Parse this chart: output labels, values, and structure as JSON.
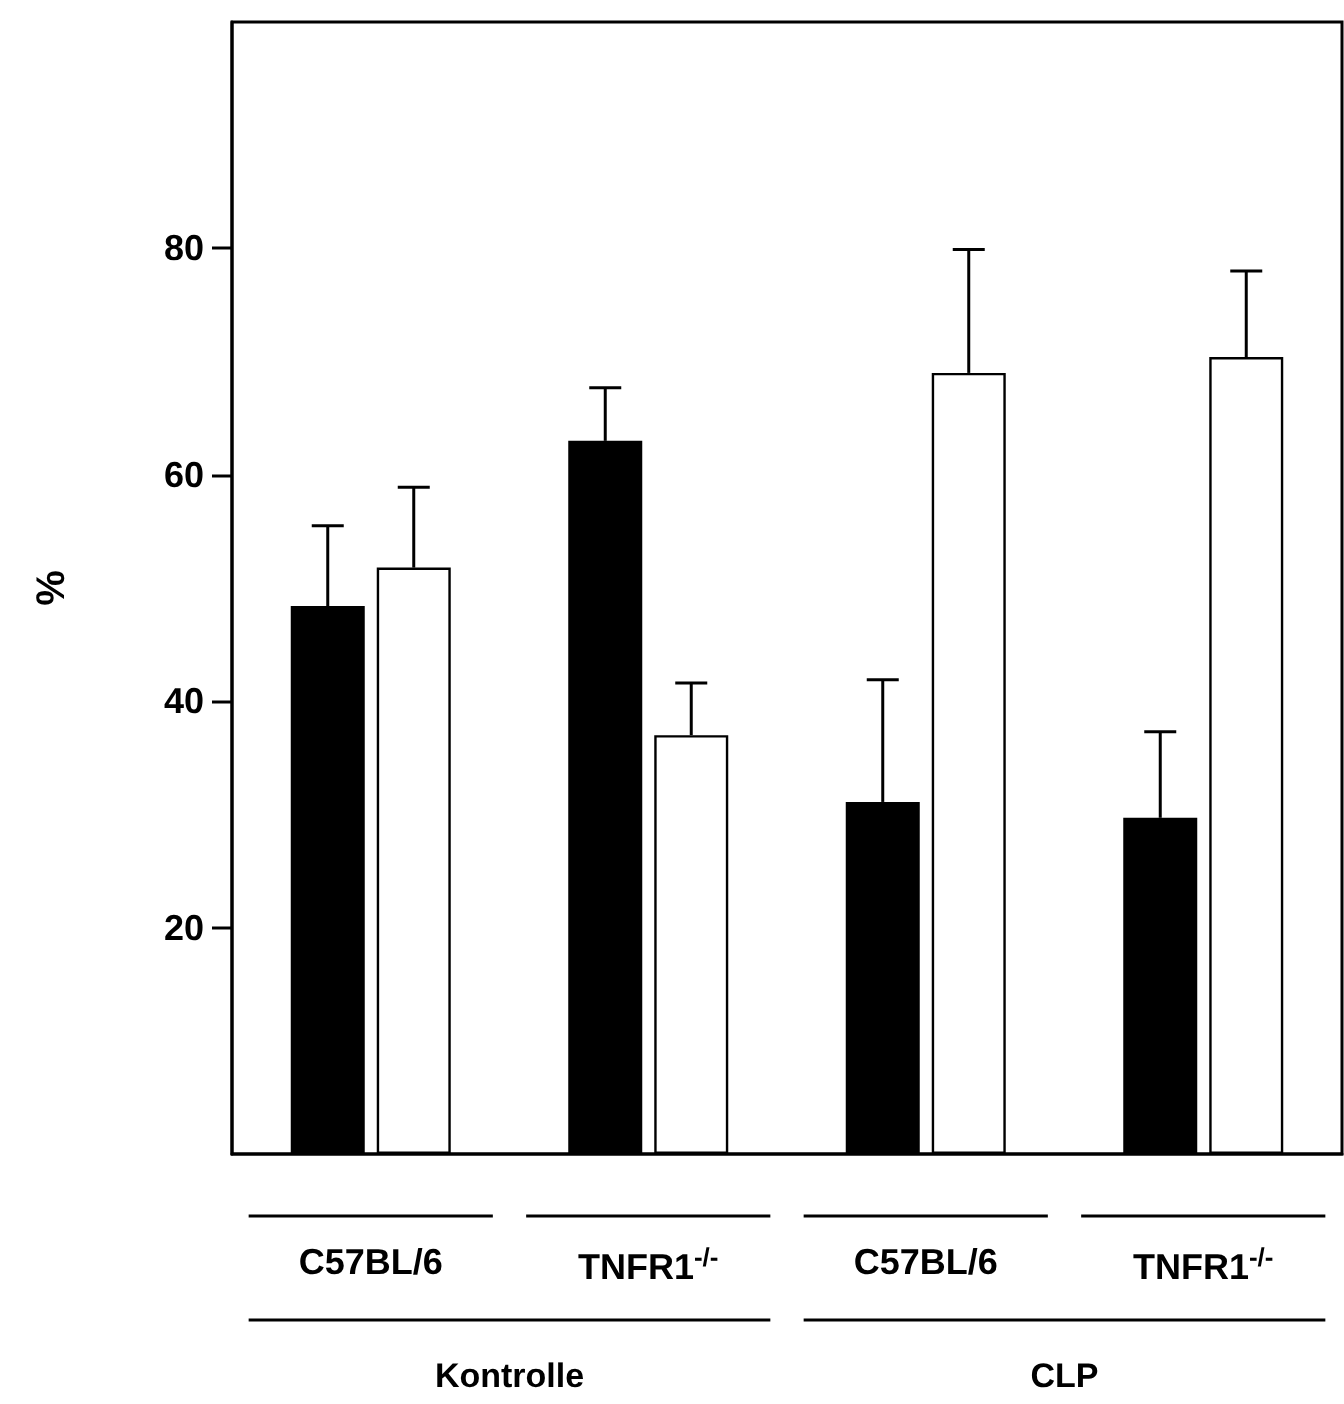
{
  "chart_data": {
    "type": "bar",
    "ylabel": "%",
    "categories": [
      "C57BL/6",
      "TNFR1$^{-/-}$",
      "C57BL/6",
      "TNFR1$^{-/-}$"
    ],
    "series": [
      {
        "color": "#000000",
        "values": [
          48.4,
          63.0,
          31.1,
          29.7
        ],
        "errors": [
          [
            48.4,
            55.5
          ],
          [
            63.0,
            67.7
          ],
          [
            31.1,
            41.9
          ],
          [
            29.7,
            37.3
          ]
        ]
      },
      {
        "color": "#ffffff",
        "values": [
          51.8,
          37.0,
          69.0,
          70.4
        ],
        "errors": [
          [
            51.8,
            58.9
          ],
          [
            37.0,
            41.6
          ],
          [
            69.0,
            79.9
          ],
          [
            70.4,
            78.0
          ]
        ]
      }
    ],
    "annotations": [
      "Kontrolle",
      "CLP"
    ],
    "ylim": [
      0,
      100
    ],
    "yticks": [
      20,
      40,
      60,
      80
    ],
    "grid": false
  }
}
